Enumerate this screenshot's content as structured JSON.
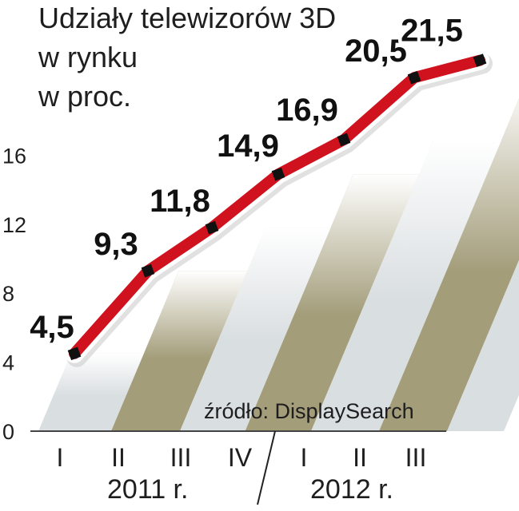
{
  "title_lines": [
    "Udziały telewizorów 3D",
    "w rynku",
    "w proc."
  ],
  "source": "źródło: DisplaySearch",
  "years": [
    "2011 r.",
    "2012 r."
  ],
  "colors": {
    "line": "#d0121e",
    "marker": "#111111",
    "band_olive": "#a39d7a",
    "band_light": "#d9dee0"
  },
  "chart_data": {
    "type": "line",
    "title": "Udziały telewizorów 3D w rynku w proc.",
    "categories": [
      "I",
      "II",
      "III",
      "IV",
      "I",
      "II",
      "III"
    ],
    "values": [
      4.5,
      9.3,
      11.8,
      14.9,
      16.9,
      20.5,
      21.5
    ],
    "labels": [
      "4,5",
      "9,3",
      "11,8",
      "14,9",
      "16,9",
      "20,5",
      "21,5"
    ],
    "y_ticks": [
      "0",
      "4",
      "8",
      "12",
      "16"
    ],
    "ylim": [
      0,
      24
    ],
    "grid": false,
    "x_groups": [
      {
        "label": "2011 r.",
        "categories": [
          "I",
          "II",
          "III",
          "IV"
        ]
      },
      {
        "label": "2012 r.",
        "categories": [
          "I",
          "II",
          "III"
        ]
      }
    ]
  }
}
